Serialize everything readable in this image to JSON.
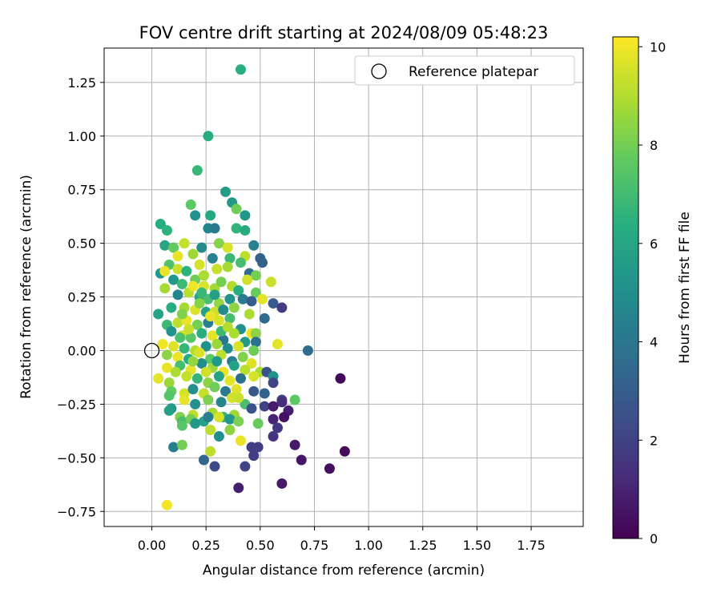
{
  "chart_data": {
    "type": "scatter",
    "title": "FOV centre drift starting at 2024/08/09 05:48:23",
    "xlabel": "Angular distance from reference (arcmin)",
    "ylabel": "Rotation from reference (arcmin)",
    "xlim": [
      -0.22,
      1.99
    ],
    "ylim": [
      -0.82,
      1.41
    ],
    "xticks": [
      0.0,
      0.25,
      0.5,
      0.75,
      1.0,
      1.25,
      1.5,
      1.75
    ],
    "xtick_labels": [
      "0.00",
      "0.25",
      "0.50",
      "0.75",
      "1.00",
      "1.25",
      "1.50",
      "1.75"
    ],
    "yticks": [
      -0.75,
      -0.5,
      -0.25,
      0.0,
      0.25,
      0.5,
      0.75,
      1.0,
      1.25
    ],
    "ytick_labels": [
      "−0.75",
      "−0.50",
      "−0.25",
      "0.00",
      "0.25",
      "0.50",
      "0.75",
      "1.00",
      "1.25"
    ],
    "grid": true,
    "legend": {
      "position": "top-right",
      "entries": [
        "Reference platepar"
      ]
    },
    "colorbar": {
      "label": "Hours from first FF file",
      "colormap": "viridis",
      "range": [
        0,
        10.2
      ],
      "ticks": [
        0,
        2,
        4,
        6,
        8,
        10
      ],
      "tick_labels": [
        "0",
        "2",
        "4",
        "6",
        "8",
        "10"
      ]
    },
    "reference": {
      "x": 0.0,
      "y": 0.0,
      "name": "Reference platepar"
    },
    "points": [
      [
        0.41,
        1.31,
        6.4
      ],
      [
        0.26,
        1.0,
        6.3
      ],
      [
        0.21,
        0.84,
        6.8
      ],
      [
        0.34,
        0.74,
        5.6
      ],
      [
        0.37,
        0.69,
        5.5
      ],
      [
        0.18,
        0.68,
        7.6
      ],
      [
        0.39,
        0.66,
        7.9
      ],
      [
        0.43,
        0.63,
        5.3
      ],
      [
        0.27,
        0.63,
        6.1
      ],
      [
        0.2,
        0.63,
        5.1
      ],
      [
        0.04,
        0.59,
        6.3
      ],
      [
        0.07,
        0.56,
        6.5
      ],
      [
        0.26,
        0.57,
        4.6
      ],
      [
        0.29,
        0.57,
        4.2
      ],
      [
        0.39,
        0.57,
        6.6
      ],
      [
        0.43,
        0.56,
        6.2
      ],
      [
        0.06,
        0.49,
        6.0
      ],
      [
        0.1,
        0.48,
        7.7
      ],
      [
        0.15,
        0.5,
        9.3
      ],
      [
        0.23,
        0.48,
        4.8
      ],
      [
        0.31,
        0.5,
        8.3
      ],
      [
        0.35,
        0.48,
        9.6
      ],
      [
        0.47,
        0.49,
        4.5
      ],
      [
        0.5,
        0.43,
        3.2
      ],
      [
        0.51,
        0.41,
        3.1
      ],
      [
        0.12,
        0.44,
        9.9
      ],
      [
        0.28,
        0.43,
        4.5
      ],
      [
        0.43,
        0.44,
        9.2
      ],
      [
        0.36,
        0.43,
        6.8
      ],
      [
        0.19,
        0.45,
        8.7
      ],
      [
        0.04,
        0.36,
        5.5
      ],
      [
        0.08,
        0.4,
        7.3
      ],
      [
        0.12,
        0.38,
        9.4
      ],
      [
        0.16,
        0.37,
        6.5
      ],
      [
        0.22,
        0.4,
        9.6
      ],
      [
        0.3,
        0.38,
        9.3
      ],
      [
        0.35,
        0.39,
        8.8
      ],
      [
        0.41,
        0.41,
        7.1
      ],
      [
        0.45,
        0.36,
        3.6
      ],
      [
        0.48,
        0.35,
        8.0
      ],
      [
        0.44,
        0.33,
        9.5
      ],
      [
        0.55,
        0.32,
        9.4
      ],
      [
        0.06,
        0.37,
        9.9
      ],
      [
        0.06,
        0.29,
        8.8
      ],
      [
        0.1,
        0.33,
        5.4
      ],
      [
        0.14,
        0.31,
        6.9
      ],
      [
        0.2,
        0.33,
        7.9
      ],
      [
        0.24,
        0.3,
        9.6
      ],
      [
        0.29,
        0.29,
        8.8
      ],
      [
        0.32,
        0.32,
        8.0
      ],
      [
        0.37,
        0.3,
        9.0
      ],
      [
        0.4,
        0.28,
        6.3
      ],
      [
        0.48,
        0.27,
        7.8
      ],
      [
        0.12,
        0.26,
        4.6
      ],
      [
        0.17,
        0.27,
        9.1
      ],
      [
        0.22,
        0.25,
        6.1
      ],
      [
        0.26,
        0.24,
        7.2
      ],
      [
        0.31,
        0.22,
        8.5
      ],
      [
        0.36,
        0.24,
        5.2
      ],
      [
        0.42,
        0.24,
        4.2
      ],
      [
        0.46,
        0.23,
        3.0
      ],
      [
        0.51,
        0.24,
        9.8
      ],
      [
        0.56,
        0.22,
        2.9
      ],
      [
        0.6,
        0.2,
        1.8
      ],
      [
        0.09,
        0.2,
        6.3
      ],
      [
        0.15,
        0.2,
        8.8
      ],
      [
        0.2,
        0.19,
        9.7
      ],
      [
        0.25,
        0.18,
        5.8
      ],
      [
        0.29,
        0.18,
        9.4
      ],
      [
        0.33,
        0.19,
        4.8
      ],
      [
        0.38,
        0.2,
        8.4
      ],
      [
        0.45,
        0.17,
        8.9
      ],
      [
        0.52,
        0.15,
        3.5
      ],
      [
        0.03,
        0.17,
        5.9
      ],
      [
        0.07,
        0.12,
        6.9
      ],
      [
        0.12,
        0.13,
        9.2
      ],
      [
        0.16,
        0.14,
        9.9
      ],
      [
        0.21,
        0.12,
        8.0
      ],
      [
        0.26,
        0.13,
        4.4
      ],
      [
        0.31,
        0.14,
        9.6
      ],
      [
        0.36,
        0.15,
        7.1
      ],
      [
        0.41,
        0.1,
        5.1
      ],
      [
        0.46,
        0.08,
        9.9
      ],
      [
        0.48,
        0.08,
        8.4
      ],
      [
        0.09,
        0.09,
        5.2
      ],
      [
        0.14,
        0.07,
        9.5
      ],
      [
        0.18,
        0.06,
        7.5
      ],
      [
        0.23,
        0.08,
        6.4
      ],
      [
        0.28,
        0.07,
        9.8
      ],
      [
        0.33,
        0.05,
        3.9
      ],
      [
        0.38,
        0.08,
        8.9
      ],
      [
        0.43,
        0.04,
        5.5
      ],
      [
        0.48,
        0.04,
        3.8
      ],
      [
        0.05,
        0.03,
        10.0
      ],
      [
        0.1,
        0.02,
        9.7
      ],
      [
        0.15,
        0.01,
        6.7
      ],
      [
        0.2,
        0.0,
        9.0
      ],
      [
        0.25,
        0.02,
        5.1
      ],
      [
        0.3,
        0.03,
        8.6
      ],
      [
        0.35,
        0.01,
        4.9
      ],
      [
        0.4,
        0.02,
        9.6
      ],
      [
        0.47,
        0.0,
        7.9
      ],
      [
        0.58,
        0.03,
        9.8
      ],
      [
        0.72,
        0.0,
        3.6
      ],
      [
        0.07,
        -0.02,
        8.4
      ],
      [
        0.12,
        -0.03,
        9.9
      ],
      [
        0.17,
        -0.04,
        6.2
      ],
      [
        0.22,
        -0.01,
        9.6
      ],
      [
        0.27,
        -0.04,
        7.6
      ],
      [
        0.32,
        -0.02,
        9.2
      ],
      [
        0.37,
        -0.05,
        4.3
      ],
      [
        0.42,
        -0.03,
        8.2
      ],
      [
        0.46,
        -0.06,
        9.7
      ],
      [
        0.07,
        -0.08,
        9.9
      ],
      [
        0.13,
        -0.07,
        7.1
      ],
      [
        0.18,
        -0.09,
        9.8
      ],
      [
        0.23,
        -0.06,
        4.9
      ],
      [
        0.28,
        -0.08,
        8.7
      ],
      [
        0.33,
        -0.1,
        9.9
      ],
      [
        0.38,
        -0.07,
        5.8
      ],
      [
        0.43,
        -0.09,
        9.1
      ],
      [
        0.5,
        -0.1,
        8.9
      ],
      [
        0.53,
        -0.1,
        2.6
      ],
      [
        0.03,
        -0.13,
        9.8
      ],
      [
        0.08,
        -0.15,
        8.6
      ],
      [
        0.16,
        -0.12,
        9.3
      ],
      [
        0.21,
        -0.13,
        6.7
      ],
      [
        0.26,
        -0.15,
        8.4
      ],
      [
        0.31,
        -0.12,
        5.9
      ],
      [
        0.36,
        -0.14,
        9.8
      ],
      [
        0.41,
        -0.13,
        3.7
      ],
      [
        0.47,
        -0.12,
        9.6
      ],
      [
        0.56,
        -0.12,
        5.1
      ],
      [
        0.56,
        -0.15,
        2.1
      ],
      [
        0.87,
        -0.13,
        0.2
      ],
      [
        0.09,
        -0.19,
        7.7
      ],
      [
        0.15,
        -0.2,
        9.6
      ],
      [
        0.19,
        -0.18,
        5.0
      ],
      [
        0.24,
        -0.2,
        9.3
      ],
      [
        0.29,
        -0.17,
        7.9
      ],
      [
        0.34,
        -0.19,
        4.1
      ],
      [
        0.39,
        -0.18,
        9.7
      ],
      [
        0.47,
        -0.19,
        2.8
      ],
      [
        0.52,
        -0.2,
        3.2
      ],
      [
        0.08,
        -0.21,
        7.4
      ],
      [
        0.15,
        -0.23,
        9.8
      ],
      [
        0.2,
        -0.25,
        5.2
      ],
      [
        0.26,
        -0.23,
        8.1
      ],
      [
        0.32,
        -0.24,
        4.6
      ],
      [
        0.37,
        -0.22,
        9.5
      ],
      [
        0.43,
        -0.25,
        7.2
      ],
      [
        0.6,
        -0.23,
        2.0
      ],
      [
        0.6,
        -0.24,
        1.3
      ],
      [
        0.66,
        -0.23,
        7.6
      ],
      [
        0.09,
        -0.27,
        5.4
      ],
      [
        0.13,
        -0.31,
        8.2
      ],
      [
        0.19,
        -0.3,
        9.2
      ],
      [
        0.24,
        -0.33,
        5.9
      ],
      [
        0.28,
        -0.29,
        8.8
      ],
      [
        0.33,
        -0.31,
        6.5
      ],
      [
        0.38,
        -0.3,
        8.7
      ],
      [
        0.46,
        -0.27,
        2.6
      ],
      [
        0.52,
        -0.26,
        2.0
      ],
      [
        0.56,
        -0.26,
        0.8
      ],
      [
        0.63,
        -0.28,
        0.9
      ],
      [
        0.08,
        -0.28,
        5.7
      ],
      [
        0.14,
        -0.33,
        7.1
      ],
      [
        0.18,
        -0.32,
        8.0
      ],
      [
        0.26,
        -0.31,
        4.3
      ],
      [
        0.31,
        -0.31,
        9.6
      ],
      [
        0.36,
        -0.32,
        5.3
      ],
      [
        0.4,
        -0.33,
        8.1
      ],
      [
        0.49,
        -0.34,
        7.8
      ],
      [
        0.56,
        -0.32,
        1.0
      ],
      [
        0.61,
        -0.31,
        0.5
      ],
      [
        0.14,
        -0.35,
        7.5
      ],
      [
        0.2,
        -0.34,
        5.4
      ],
      [
        0.27,
        -0.37,
        9.2
      ],
      [
        0.36,
        -0.37,
        8.4
      ],
      [
        0.58,
        -0.36,
        1.7
      ],
      [
        0.56,
        -0.4,
        1.5
      ],
      [
        0.1,
        -0.45,
        4.3
      ],
      [
        0.14,
        -0.44,
        8.0
      ],
      [
        0.31,
        -0.4,
        5.0
      ],
      [
        0.41,
        -0.42,
        9.9
      ],
      [
        0.46,
        -0.45,
        1.8
      ],
      [
        0.49,
        -0.45,
        1.9
      ],
      [
        0.66,
        -0.44,
        0.7
      ],
      [
        0.27,
        -0.47,
        9.2
      ],
      [
        0.47,
        -0.49,
        1.9
      ],
      [
        0.69,
        -0.51,
        0.6
      ],
      [
        0.89,
        -0.47,
        0.3
      ],
      [
        0.24,
        -0.51,
        3.4
      ],
      [
        0.29,
        -0.54,
        2.3
      ],
      [
        0.43,
        -0.54,
        2.1
      ],
      [
        0.82,
        -0.55,
        0.4
      ],
      [
        0.6,
        -0.62,
        0.7
      ],
      [
        0.4,
        -0.64,
        0.9
      ],
      [
        0.07,
        -0.72,
        10.0
      ],
      [
        0.13,
        0.06,
        7.2
      ],
      [
        0.17,
        0.1,
        9.4
      ],
      [
        0.22,
        0.22,
        8.3
      ],
      [
        0.27,
        0.16,
        9.9
      ],
      [
        0.32,
        0.09,
        6.9
      ],
      [
        0.19,
        0.3,
        10.0
      ],
      [
        0.24,
        0.35,
        8.9
      ],
      [
        0.29,
        0.26,
        5.7
      ],
      [
        0.14,
        0.17,
        8.2
      ],
      [
        0.35,
        0.11,
        9.0
      ],
      [
        0.25,
        -0.1,
        9.5
      ],
      [
        0.19,
        -0.05,
        8.5
      ],
      [
        0.3,
        -0.05,
        5.5
      ],
      [
        0.11,
        -0.1,
        8.9
      ],
      [
        0.4,
        -0.22,
        9.4
      ],
      [
        0.23,
        0.27,
        6.8
      ]
    ]
  }
}
